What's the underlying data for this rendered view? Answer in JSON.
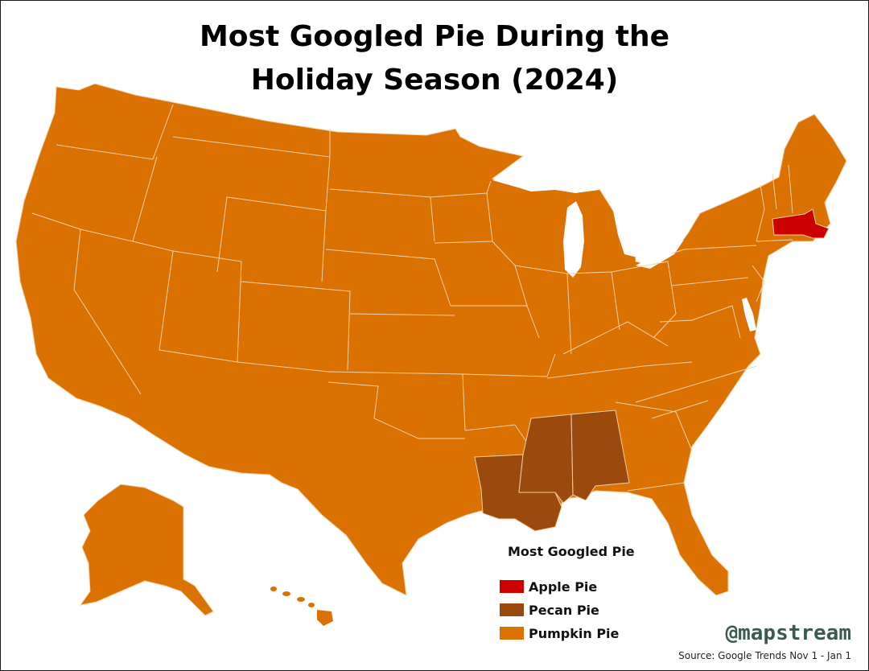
{
  "title": {
    "line1": "Most Googled Pie During the",
    "line2": "Holiday Season (2024)"
  },
  "colors": {
    "apple": "#cc0000",
    "pecan": "#9a4a0c",
    "pumpkin": "#db7100",
    "border": "#f3d2a8",
    "brand": "#3d5a52"
  },
  "legend": {
    "title": "Most Googled Pie",
    "items": [
      {
        "label": "Apple Pie",
        "color": "#cc0000"
      },
      {
        "label": "Pecan Pie",
        "color": "#9a4a0c"
      },
      {
        "label": "Pumpkin Pie",
        "color": "#db7100"
      }
    ]
  },
  "regions": {
    "apple": [
      "Massachusetts"
    ],
    "pecan": [
      "Louisiana",
      "Mississippi",
      "Alabama"
    ],
    "pumpkin": "all other states"
  },
  "brand": "@mapstream",
  "source": "Source: Google Trends Nov 1 - Jan 1"
}
